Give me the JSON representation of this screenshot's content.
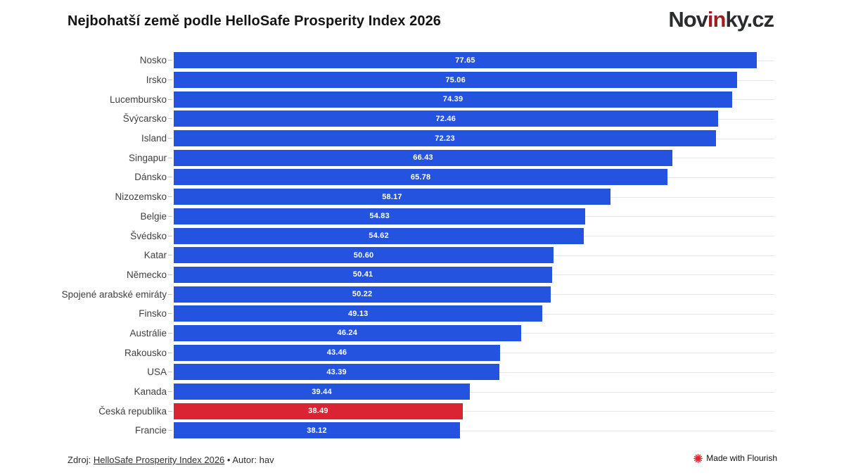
{
  "title": "Nejbohatší země podle HelloSafe Prosperity Index 2026",
  "logo": {
    "part1": "Nov",
    "part2": "in",
    "part3": "ky.cz",
    "accent_color": "#9b2026",
    "text_color": "#2a2c30"
  },
  "footer": {
    "prefix": "Zdroj: ",
    "link": "HelloSafe Prosperity Index 2026",
    "separator": " • ",
    "author": "Autor: hav"
  },
  "attribution": {
    "label": "Made with Flourish",
    "icon": "flourish-flower-icon",
    "icon_color": "#e01f2d"
  },
  "colors": {
    "bar": "#2454df",
    "highlight": "#db2433",
    "row_line": "#e7e7e7",
    "label_text": "#404040",
    "value_text": "#ffffff"
  },
  "chart_data": {
    "type": "bar",
    "orientation": "horizontal",
    "title": "Nejbohatší země podle HelloSafe Prosperity Index 2026",
    "xlabel": "",
    "ylabel": "",
    "xlim": [
      0,
      80
    ],
    "grid": "row-lines",
    "legend": "none",
    "value_label_position": "inside-center",
    "categories": [
      "Nosko",
      "Irsko",
      "Lucembursko",
      "Švýcarsko",
      "Island",
      "Singapur",
      "Dánsko",
      "Nizozemsko",
      "Belgie",
      "Švédsko",
      "Katar",
      "Německo",
      "Spojené arabské emiráty",
      "Finsko",
      "Austrálie",
      "Rakousko",
      "USA",
      "Kanada",
      "Česká republika",
      "Francie"
    ],
    "values": [
      77.65,
      75.06,
      74.39,
      72.46,
      72.23,
      66.43,
      65.78,
      58.17,
      54.83,
      54.62,
      50.6,
      50.41,
      50.22,
      49.13,
      46.24,
      43.46,
      43.39,
      39.44,
      38.49,
      38.12
    ],
    "value_labels": [
      "77.65",
      "75.06",
      "74.39",
      "72.46",
      "72.23",
      "66.43",
      "65.78",
      "58.17",
      "54.83",
      "54.62",
      "50.60",
      "50.41",
      "50.22",
      "49.13",
      "46.24",
      "43.46",
      "43.39",
      "39.44",
      "38.49",
      "38.12"
    ],
    "highlight_index": 18
  }
}
